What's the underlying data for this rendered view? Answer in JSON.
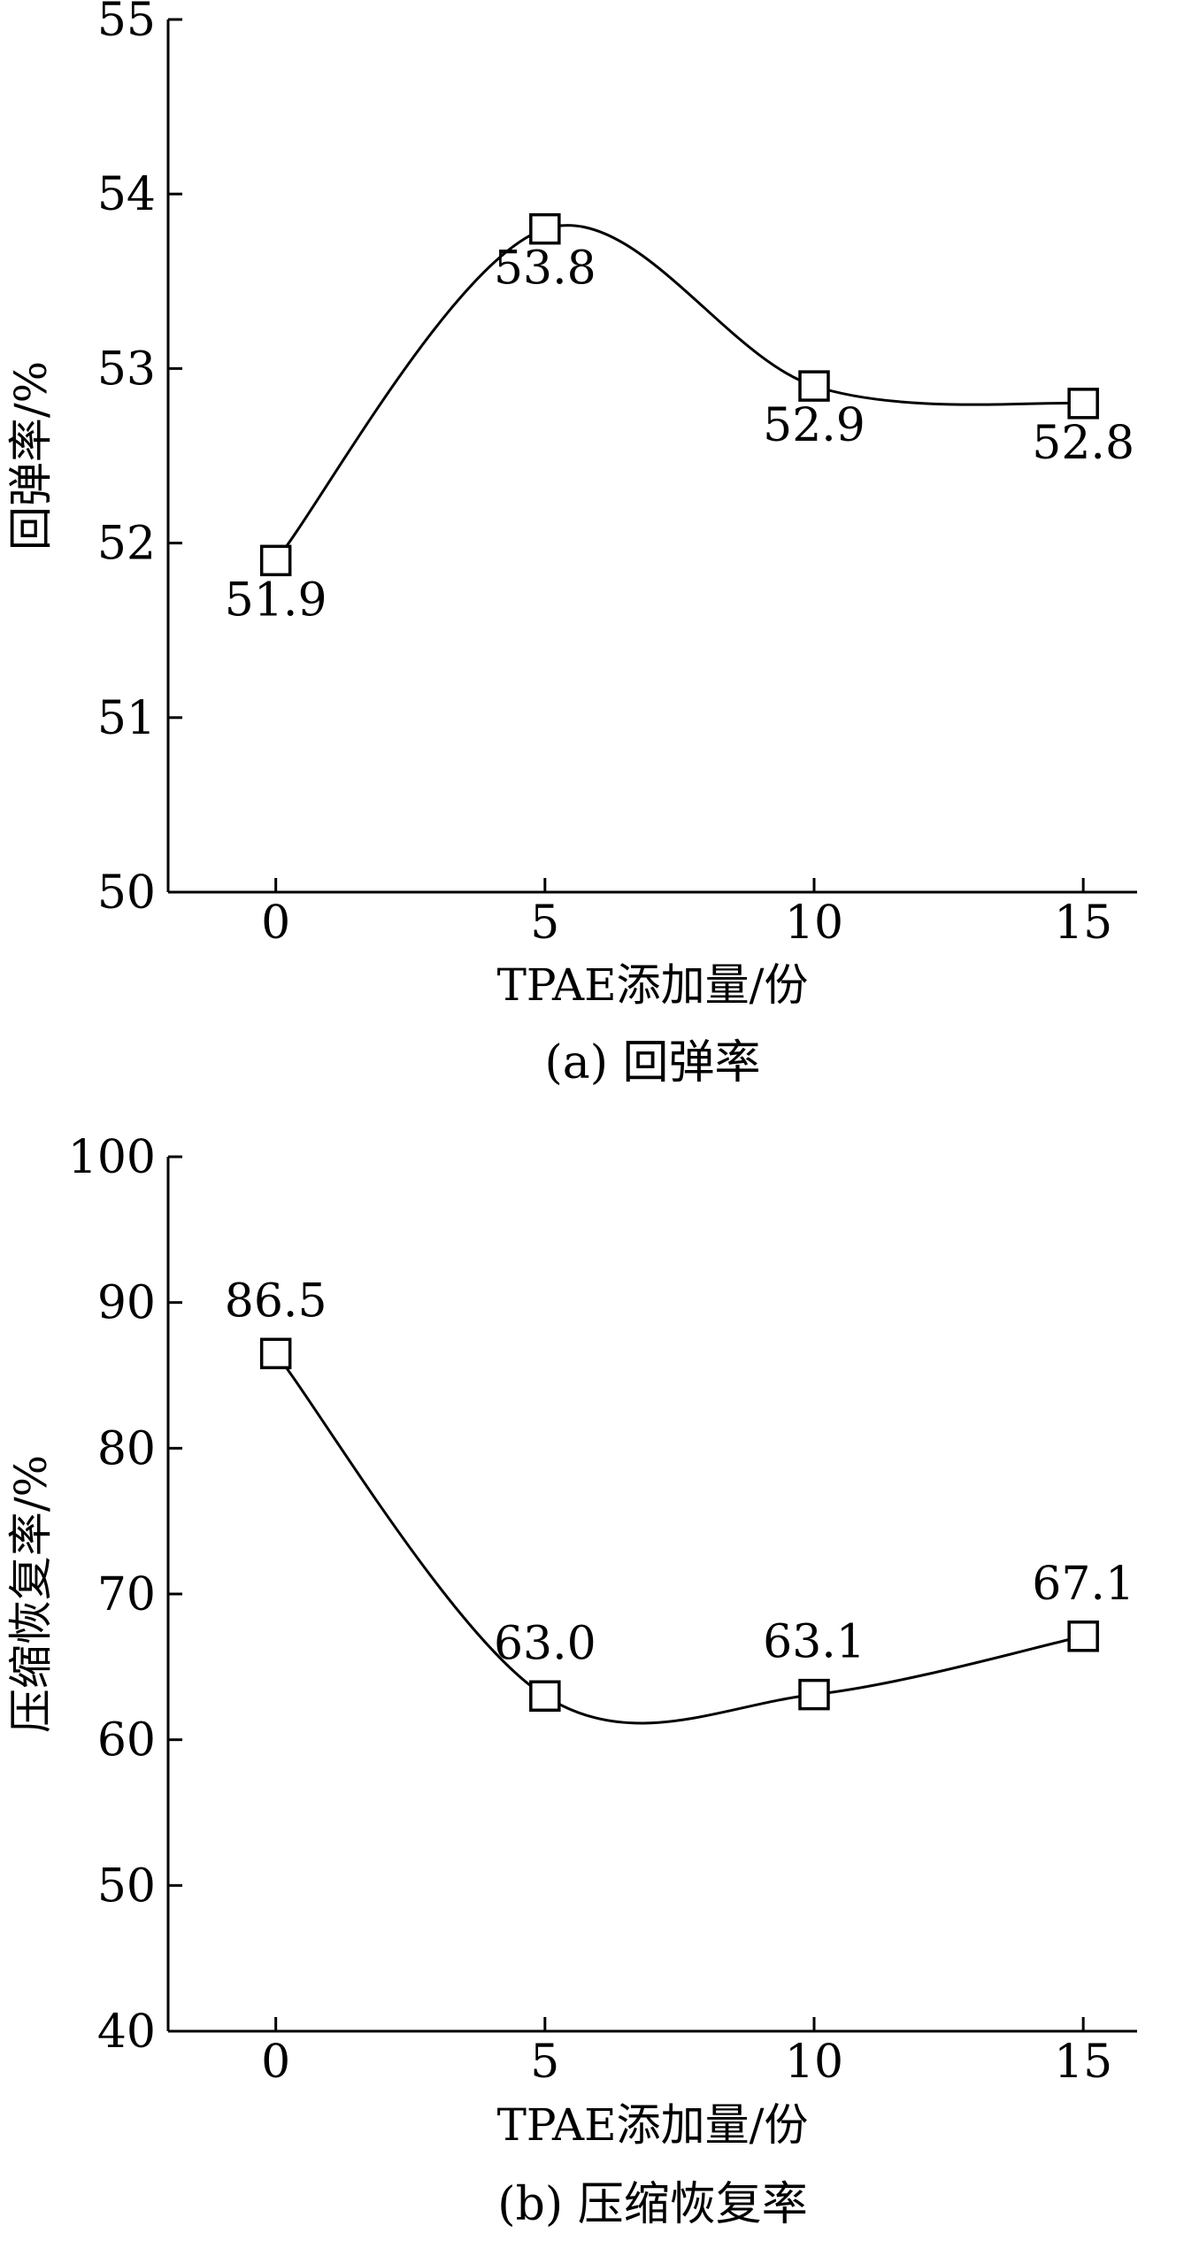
{
  "chart_data": [
    {
      "type": "line",
      "caption": "(a) 回弹率",
      "xlabel": "TPAE添加量/份",
      "ylabel": "回弹率/%",
      "x": [
        0,
        5,
        10,
        15
      ],
      "xticks": [
        "0",
        "5",
        "10",
        "15"
      ],
      "ylim": [
        50,
        55
      ],
      "yticks": [
        "50",
        "51",
        "52",
        "53",
        "54",
        "55"
      ],
      "series": [
        {
          "values": [
            51.9,
            53.8,
            52.9,
            52.8
          ],
          "labels": [
            "51.9",
            "53.8",
            "52.9",
            "52.8"
          ],
          "label_position": "below"
        }
      ],
      "marker": "open-square",
      "smooth": true,
      "grid": false
    },
    {
      "type": "line",
      "caption": "(b) 压缩恢复率",
      "xlabel": "TPAE添加量/份",
      "ylabel": "压缩恢复率/%",
      "x": [
        0,
        5,
        10,
        15
      ],
      "xticks": [
        "0",
        "5",
        "10",
        "15"
      ],
      "ylim": [
        40,
        100
      ],
      "yticks": [
        "40",
        "50",
        "60",
        "70",
        "80",
        "90",
        "100"
      ],
      "series": [
        {
          "values": [
            86.5,
            63.0,
            63.1,
            67.1
          ],
          "labels": [
            "86.5",
            "63.0",
            "63.1",
            "67.1"
          ],
          "label_position": "above"
        }
      ],
      "marker": "open-square",
      "smooth": true,
      "grid": false
    }
  ]
}
